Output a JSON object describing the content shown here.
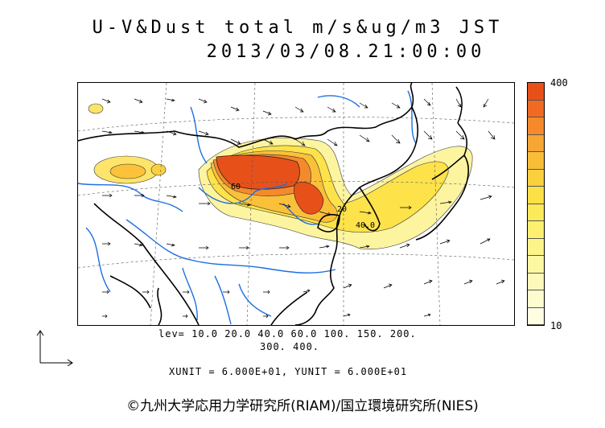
{
  "title_line1": "U-V&Dust total m/s&ug/m3 JST",
  "title_line2": "2013/03/08.21:00:00",
  "colorbar": {
    "max_label": "400",
    "min_label": "10",
    "colors": [
      "#e8501a",
      "#f06a22",
      "#f48a2c",
      "#f7a534",
      "#f9bd38",
      "#fbd03e",
      "#fde046",
      "#fdea5a",
      "#fdf070",
      "#fdf489",
      "#fdf7a2",
      "#fef9bb",
      "#fefbcf",
      "#fffde2"
    ]
  },
  "legend": {
    "levels_line1": "lev= 10.0 20.0 40.0 60.0 100. 150. 200.",
    "levels_line2": "300. 400.",
    "unit_line": "XUNIT = 6.000E+01, YUNIT = 6.000E+01"
  },
  "map_labels": {
    "contour_a": "60",
    "contour_b": "20",
    "contour_c": "40.0"
  },
  "copyright": "©九州大学応用力学研究所(RIAM)/国立環境研究所(NIES)"
}
